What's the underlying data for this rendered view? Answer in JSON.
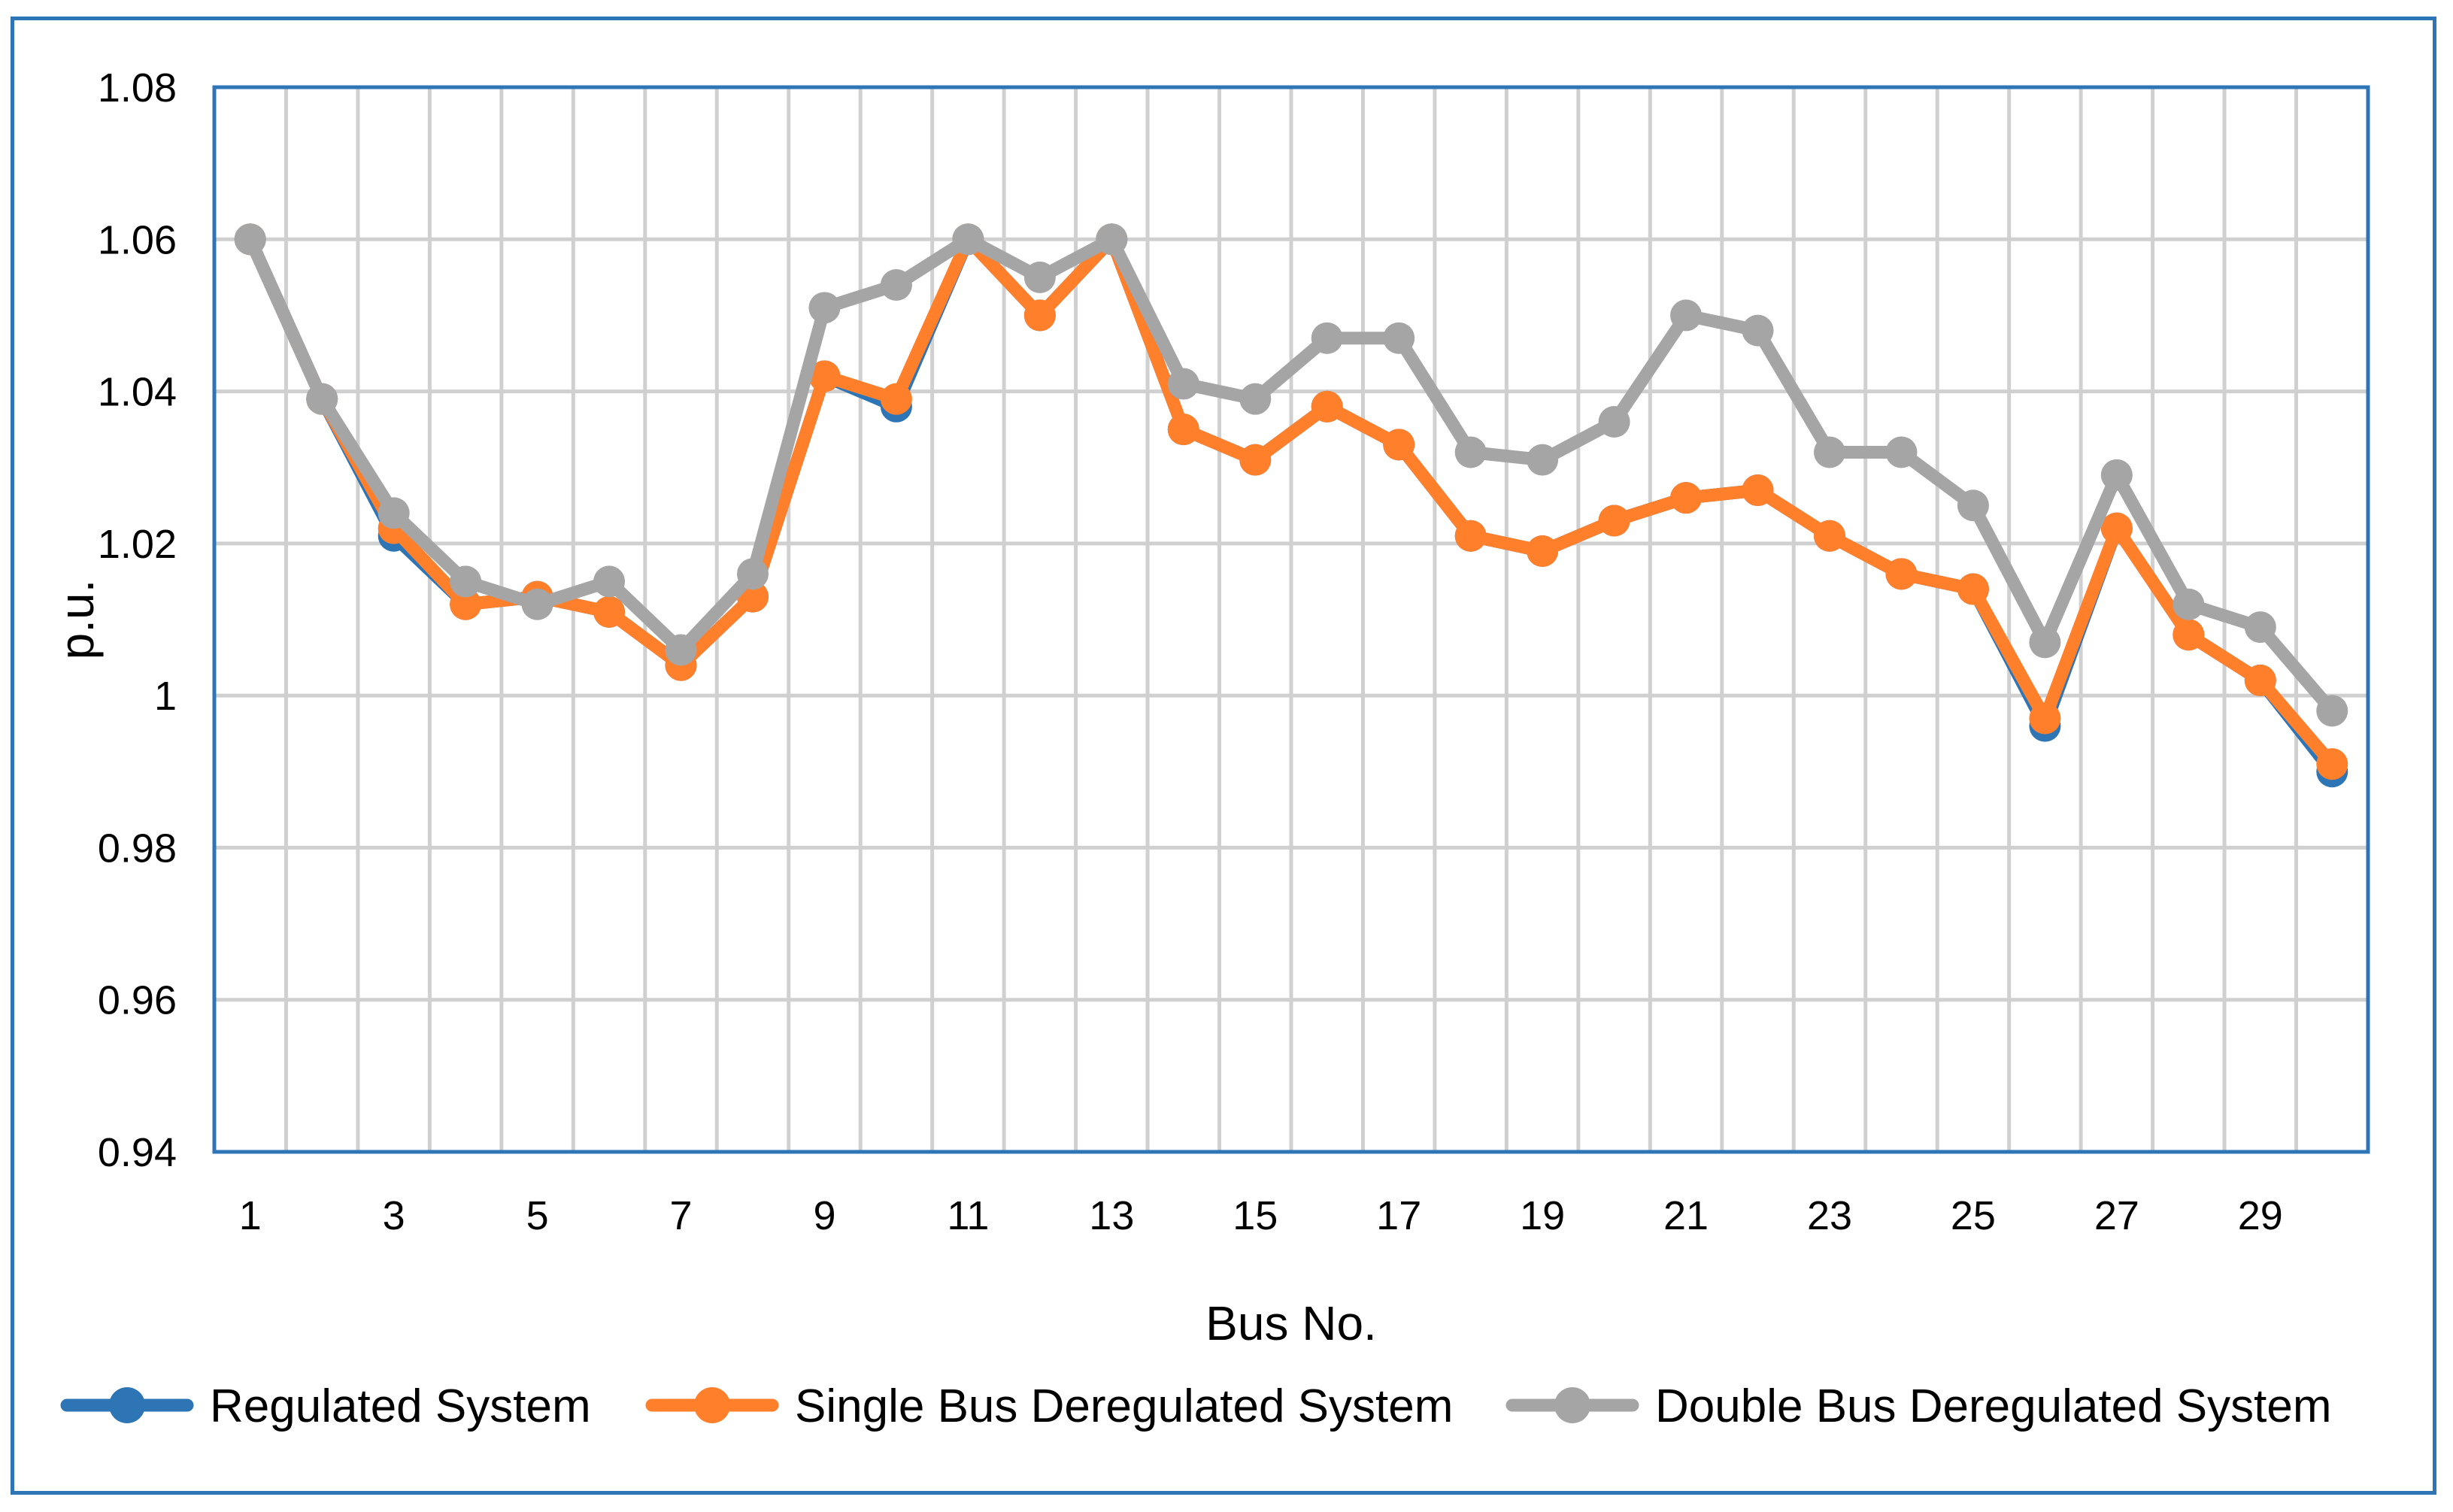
{
  "chart_data": {
    "type": "line",
    "title": "",
    "xlabel": "Bus No.",
    "ylabel": "p.u.",
    "ylim": [
      0.94,
      1.08
    ],
    "yticks": [
      "0.94",
      "0.96",
      "0.98",
      "1",
      "1.02",
      "1.04",
      "1.06",
      "1.08"
    ],
    "ytick_values": [
      0.94,
      0.96,
      0.98,
      1.0,
      1.02,
      1.04,
      1.06,
      1.08
    ],
    "x": [
      1,
      2,
      3,
      4,
      5,
      6,
      7,
      8,
      9,
      10,
      11,
      12,
      13,
      14,
      15,
      16,
      17,
      18,
      19,
      20,
      21,
      22,
      23,
      24,
      25,
      26,
      27,
      28,
      29,
      30
    ],
    "xtick_labels": [
      "1",
      "3",
      "5",
      "7",
      "9",
      "11",
      "13",
      "15",
      "17",
      "19",
      "21",
      "23",
      "25",
      "27",
      "29"
    ],
    "grid": true,
    "legend_position": "bottom",
    "series": [
      {
        "name": "Regulated System",
        "color": "#2E75B6",
        "values": [
          1.06,
          1.039,
          1.021,
          1.012,
          1.013,
          1.011,
          1.004,
          1.013,
          1.042,
          1.038,
          1.06,
          1.05,
          1.06,
          1.035,
          1.031,
          1.038,
          1.033,
          1.021,
          1.019,
          1.023,
          1.026,
          1.027,
          1.021,
          1.016,
          1.014,
          0.996,
          1.022,
          1.008,
          1.002,
          0.99
        ]
      },
      {
        "name": "Single Bus Deregulated System",
        "color": "#FF7F2A",
        "values": [
          1.06,
          1.039,
          1.022,
          1.012,
          1.013,
          1.011,
          1.004,
          1.013,
          1.042,
          1.039,
          1.06,
          1.05,
          1.06,
          1.035,
          1.031,
          1.038,
          1.033,
          1.021,
          1.019,
          1.023,
          1.026,
          1.027,
          1.021,
          1.016,
          1.014,
          0.997,
          1.022,
          1.008,
          1.002,
          0.991
        ]
      },
      {
        "name": "Double Bus Deregulated System",
        "color": "#A5A5A5",
        "values": [
          1.06,
          1.039,
          1.024,
          1.015,
          1.012,
          1.015,
          1.006,
          1.016,
          1.051,
          1.054,
          1.06,
          1.055,
          1.06,
          1.041,
          1.039,
          1.047,
          1.047,
          1.032,
          1.031,
          1.036,
          1.05,
          1.048,
          1.032,
          1.032,
          1.025,
          1.007,
          1.029,
          1.012,
          1.009,
          0.998
        ]
      }
    ]
  }
}
